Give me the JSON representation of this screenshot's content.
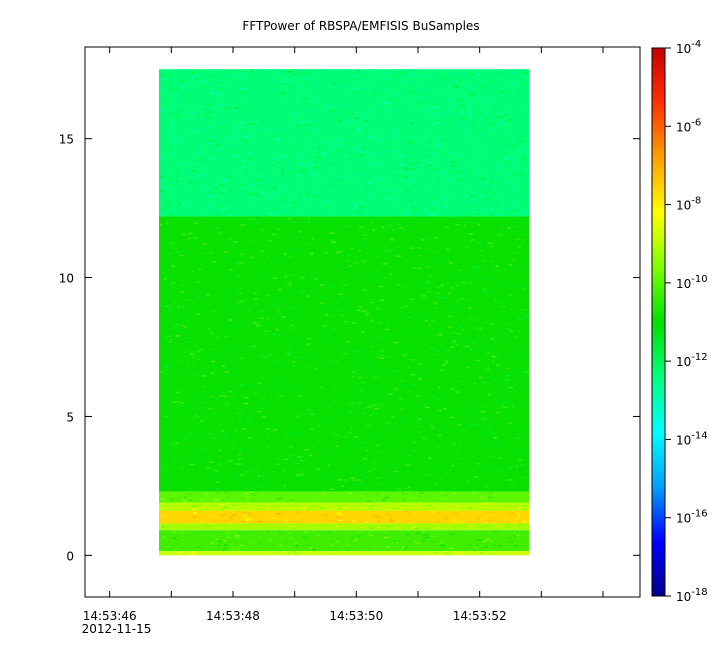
{
  "chart_data": {
    "type": "heatmap",
    "title": "FFTPower of RBSPA/EMFISIS  BuSamples",
    "xlabel": "",
    "ylabel": "",
    "x_ticks": [
      "14:53:46",
      "14:53:48",
      "14:53:50",
      "14:53:52"
    ],
    "x_date_label": "2012-11-15",
    "x_range_seconds": [
      "14:53:45.6",
      "14:53:54.6"
    ],
    "ylim": [
      -1.5,
      18.3
    ],
    "y_ticks": [
      0,
      5,
      10,
      15
    ],
    "z_scale": "log",
    "z_range": [
      1e-18,
      0.0001
    ],
    "colorbar_ticks": [
      {
        "base": "10",
        "exp": "-4",
        "value": 0.0001
      },
      {
        "base": "10",
        "exp": "-6",
        "value": 1e-06
      },
      {
        "base": "10",
        "exp": "-8",
        "value": 1e-08
      },
      {
        "base": "10",
        "exp": "-10",
        "value": 1e-10
      },
      {
        "base": "10",
        "exp": "-12",
        "value": 1e-12
      },
      {
        "base": "10",
        "exp": "-14",
        "value": 1e-14
      },
      {
        "base": "10",
        "exp": "-16",
        "value": 1e-16
      },
      {
        "base": "10",
        "exp": "-18",
        "value": 1e-18
      }
    ],
    "data_time_range": [
      "14:53:46.8",
      "14:53:52.8"
    ],
    "data_y_range": [
      0,
      17.5
    ],
    "spectral_bands": [
      {
        "y_from": 12.2,
        "y_to": 17.5,
        "log10_power": -12.3
      },
      {
        "y_from": 2.3,
        "y_to": 12.2,
        "log10_power": -10.9
      },
      {
        "y_from": 1.9,
        "y_to": 2.3,
        "log10_power": -10.0
      },
      {
        "y_from": 1.6,
        "y_to": 1.9,
        "log10_power": -9.0
      },
      {
        "y_from": 1.15,
        "y_to": 1.6,
        "log10_power": -7.6
      },
      {
        "y_from": 0.9,
        "y_to": 1.15,
        "log10_power": -9.2
      },
      {
        "y_from": 0.15,
        "y_to": 0.9,
        "log10_power": -10.3
      },
      {
        "y_from": 0.0,
        "y_to": 0.15,
        "log10_power": -8.8
      }
    ],
    "colormap": [
      "#00008f",
      "#0000ff",
      "#00a0ff",
      "#00ffff",
      "#00ff80",
      "#00e000",
      "#80ff00",
      "#ffff00",
      "#ffa000",
      "#ff3000",
      "#c80000"
    ],
    "grid": false,
    "legend": "colorbar-right"
  }
}
